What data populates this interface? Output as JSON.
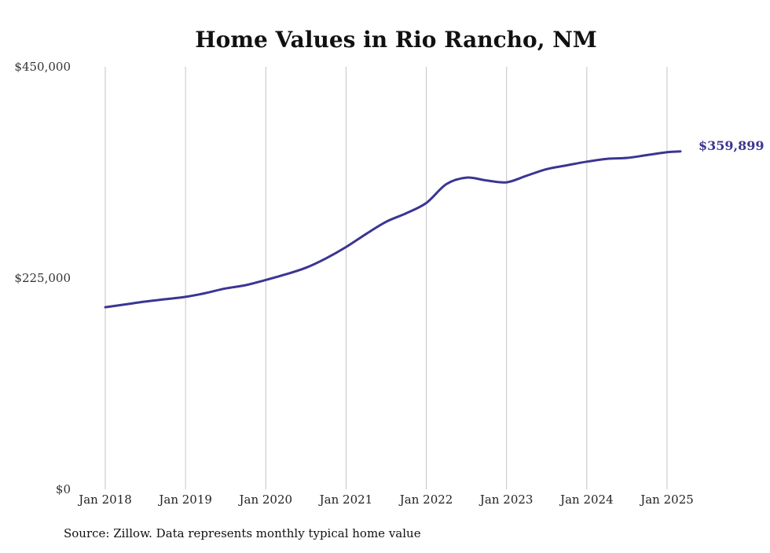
{
  "chart_data": {
    "type": "line",
    "title": "Home Values in Rio Rancho, NM",
    "xlabel": "",
    "ylabel": "",
    "ylim": [
      0,
      450000
    ],
    "y_ticks": [
      {
        "value": 0,
        "label": "$0"
      },
      {
        "value": 225000,
        "label": "$225,000"
      },
      {
        "value": 450000,
        "label": "$450,000"
      }
    ],
    "x_ticks": [
      {
        "date": "2018-01",
        "label": "Jan 2018"
      },
      {
        "date": "2019-01",
        "label": "Jan 2019"
      },
      {
        "date": "2020-01",
        "label": "Jan 2020"
      },
      {
        "date": "2021-01",
        "label": "Jan 2021"
      },
      {
        "date": "2022-01",
        "label": "Jan 2022"
      },
      {
        "date": "2023-01",
        "label": "Jan 2023"
      },
      {
        "date": "2024-01",
        "label": "Jan 2024"
      },
      {
        "date": "2025-01",
        "label": "Jan 2025"
      }
    ],
    "grid": "vertical",
    "line_color": "#3b3593",
    "end_label": "$359,899",
    "source": "Source: Zillow. Data represents monthly typical home value",
    "series": [
      {
        "x": [
          "2018-01",
          "2018-04",
          "2018-07",
          "2018-10",
          "2019-01",
          "2019-04",
          "2019-07",
          "2019-10",
          "2020-01",
          "2020-04",
          "2020-07",
          "2020-10",
          "2021-01",
          "2021-04",
          "2021-07",
          "2021-10",
          "2022-01",
          "2022-04",
          "2022-07",
          "2022-10",
          "2023-01",
          "2023-04",
          "2023-07",
          "2023-10",
          "2024-01",
          "2024-04",
          "2024-07",
          "2024-10",
          "2025-01",
          "2025-03"
        ],
        "values": [
          194000,
          197000,
          200000,
          202500,
          205000,
          209000,
          214000,
          217500,
          223000,
          229000,
          236000,
          246000,
          258000,
          272000,
          285000,
          294000,
          305000,
          325000,
          332000,
          329000,
          327000,
          334000,
          341000,
          345000,
          349000,
          352000,
          353000,
          356000,
          359000,
          359899
        ]
      }
    ]
  }
}
